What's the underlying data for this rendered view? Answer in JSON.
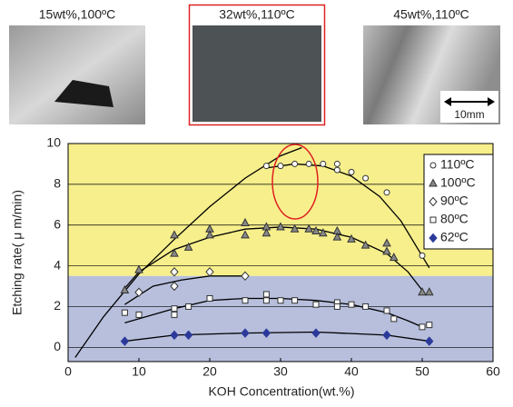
{
  "panels": [
    {
      "label": "15wt%,100ºC"
    },
    {
      "label": "32wt%,110ºC"
    },
    {
      "label": "45wt%,110ºC"
    }
  ],
  "scale_bar": "10mm",
  "chart_data": {
    "type": "scatter",
    "x_label": "KOH Concentration(wt.%)",
    "y_label": "Etching rate( μ m/min)",
    "xlim": [
      0,
      60
    ],
    "xticks": [
      0,
      10,
      20,
      30,
      40,
      50,
      60
    ],
    "ylim": [
      -0.7,
      10
    ],
    "yticks": [
      0,
      2,
      4,
      6,
      8,
      10
    ],
    "grid": true,
    "legend": "upper-right",
    "regions": [
      {
        "ylim": [
          3.5,
          10
        ],
        "color": "#f6ef8c"
      },
      {
        "ylim": [
          -0.7,
          3.5
        ],
        "color": "#b7bfdd"
      }
    ],
    "series": [
      {
        "name": "110ºC",
        "marker": "circle",
        "color": "#ffffff",
        "x": [
          28,
          30,
          32,
          34,
          36,
          38,
          38,
          40,
          42,
          45,
          50
        ],
        "values": [
          8.9,
          8.9,
          9.0,
          9.0,
          9.0,
          9.0,
          8.7,
          8.6,
          8.3,
          7.6,
          4.5
        ]
      },
      {
        "name": "100ºC",
        "marker": "triangle",
        "color": "#888888",
        "x": [
          8,
          10,
          15,
          15,
          17,
          20,
          20,
          25,
          25,
          28,
          28,
          30,
          32,
          34,
          35,
          36,
          38,
          38,
          40,
          42,
          45,
          45,
          46,
          50,
          51
        ],
        "values": [
          2.8,
          3.8,
          5.5,
          4.6,
          4.9,
          5.8,
          5.5,
          6.1,
          5.5,
          5.9,
          5.6,
          5.9,
          5.8,
          5.8,
          5.7,
          5.6,
          5.7,
          5.4,
          5.3,
          5.0,
          5.1,
          4.7,
          4.4,
          2.7,
          2.7
        ]
      },
      {
        "name": "90ºC",
        "marker": "diamond",
        "color": "#ffffff",
        "x": [
          10,
          15,
          15,
          20,
          25
        ],
        "values": [
          2.7,
          3.7,
          3.0,
          3.7,
          3.5
        ]
      },
      {
        "name": "80ºC",
        "marker": "square",
        "color": "#ffffff",
        "x": [
          8,
          10,
          15,
          15,
          17,
          20,
          25,
          28,
          28,
          30,
          32,
          35,
          38,
          38,
          40,
          42,
          45,
          46,
          50,
          51
        ],
        "values": [
          1.7,
          1.6,
          1.9,
          1.6,
          2.0,
          2.4,
          2.3,
          2.6,
          2.3,
          2.3,
          2.3,
          2.1,
          2.2,
          2.0,
          2.1,
          2.0,
          1.8,
          1.4,
          1.0,
          1.1
        ]
      },
      {
        "name": "62ºC",
        "marker": "diamond",
        "color": "#2b3a9a",
        "x": [
          8,
          15,
          17,
          25,
          28,
          35,
          45,
          51
        ],
        "values": [
          0.3,
          0.6,
          0.6,
          0.7,
          0.7,
          0.7,
          0.6,
          0.3
        ]
      }
    ],
    "trend_lines": [
      {
        "x": [
          1,
          5,
          10,
          15,
          20,
          25,
          30,
          33
        ],
        "values": [
          -0.5,
          1.5,
          3.6,
          5.3,
          6.9,
          8.3,
          9.4,
          9.8
        ]
      },
      {
        "x": [
          28,
          32,
          36,
          40,
          44,
          47,
          51
        ],
        "values": [
          8.8,
          9.0,
          8.9,
          8.4,
          7.4,
          6.2,
          3.9
        ]
      },
      {
        "x": [
          8,
          10,
          15,
          20,
          25,
          30,
          35,
          40,
          45,
          48,
          50
        ],
        "values": [
          2.9,
          3.7,
          4.8,
          5.4,
          5.8,
          5.9,
          5.8,
          5.4,
          4.6,
          3.7,
          2.8
        ]
      },
      {
        "x": [
          8,
          12,
          16,
          20,
          25
        ],
        "values": [
          2.1,
          3.0,
          3.3,
          3.5,
          3.5
        ]
      },
      {
        "x": [
          8,
          15,
          20,
          25,
          30,
          35,
          40,
          45,
          48,
          50
        ],
        "values": [
          1.2,
          1.9,
          2.3,
          2.4,
          2.4,
          2.3,
          2.1,
          1.7,
          1.3,
          1.0
        ]
      },
      {
        "x": [
          8,
          15,
          25,
          35,
          45,
          51
        ],
        "values": [
          0.3,
          0.6,
          0.7,
          0.75,
          0.6,
          0.3
        ]
      }
    ]
  }
}
